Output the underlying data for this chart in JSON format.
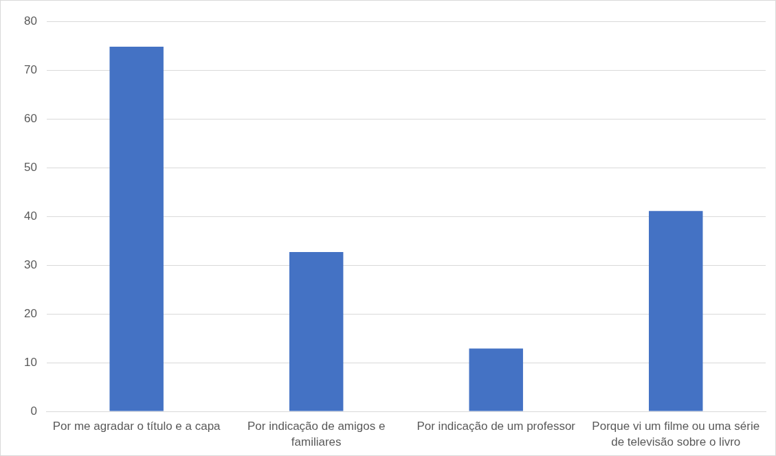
{
  "chart_data": {
    "type": "bar",
    "categories": [
      "Por me agradar o título e a capa",
      "Por indicação de amigos e familiares",
      "Por indicação de um professor",
      "Porque vi um filme ou uma série de televisão sobre o livro"
    ],
    "values": [
      74.8,
      32.7,
      12.9,
      41.1
    ],
    "color": "#4472c4",
    "ylim": [
      0,
      80
    ],
    "yticks": [
      0,
      10,
      20,
      30,
      40,
      50,
      60,
      70,
      80
    ],
    "grid": "y"
  }
}
